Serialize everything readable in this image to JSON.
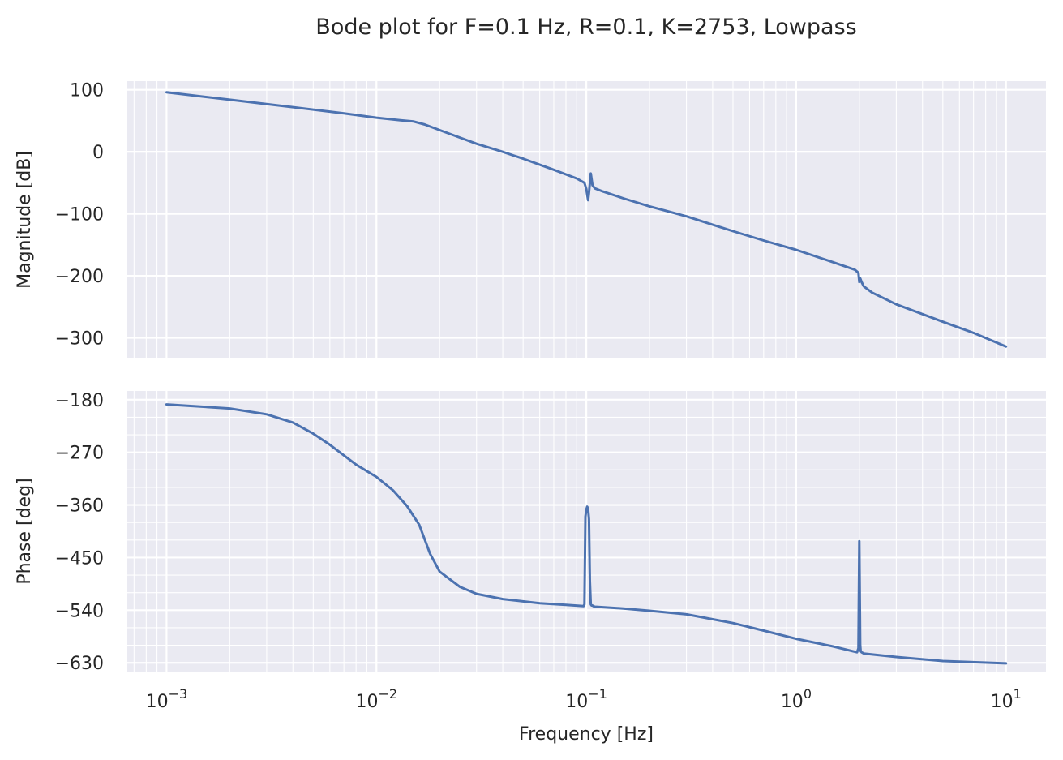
{
  "chart_data": {
    "title": "Bode plot for F=0.1 Hz, R=0.1, K=2753, Lowpass",
    "xlabel": "Frequency [Hz]",
    "xscale": "log",
    "xlim": [
      0.00065,
      15.5
    ],
    "xticks": [
      {
        "value": 0.001,
        "base": "10",
        "exp": "−3"
      },
      {
        "value": 0.01,
        "base": "10",
        "exp": "−2"
      },
      {
        "value": 0.1,
        "base": "10",
        "exp": "−1"
      },
      {
        "value": 1,
        "base": "10",
        "exp": "0"
      },
      {
        "value": 10,
        "base": "10",
        "exp": "1"
      }
    ],
    "grid": true,
    "colors": {
      "series": "#4c72b0",
      "panel": "#eaeaf2",
      "grid": "#ffffff",
      "text": "#262626"
    },
    "panels": [
      {
        "type": "line",
        "ylabel": "Magnitude [dB]",
        "ylim": [
          -332,
          114
        ],
        "yticks": [
          {
            "value": 100,
            "label": "100"
          },
          {
            "value": 0,
            "label": "0"
          },
          {
            "value": -100,
            "label": "−100"
          },
          {
            "value": -200,
            "label": "−200"
          },
          {
            "value": -300,
            "label": "−300"
          }
        ],
        "series": [
          {
            "x": [
              0.001,
              0.002,
              0.004,
              0.007,
              0.01,
              0.013,
              0.015,
              0.017,
              0.02,
              0.025,
              0.03,
              0.04,
              0.05,
              0.07,
              0.09,
              0.098,
              0.1,
              0.102,
              0.103,
              0.105,
              0.107,
              0.11,
              0.12,
              0.15,
              0.2,
              0.3,
              0.5,
              0.7,
              1.0,
              1.5,
              1.9,
              1.98,
              2.0,
              2.02,
              2.05,
              2.1,
              2.3,
              3.0,
              5.0,
              7.0,
              10.0
            ],
            "y": [
              96,
              84,
              72,
              62,
              55,
              51,
              49,
              44,
              35,
              23,
              13,
              0,
              -11,
              -29,
              -43,
              -50,
              -60,
              -78,
              -66,
              -35,
              -54,
              -59,
              -64,
              -75,
              -88,
              -104,
              -128,
              -143,
              -158,
              -178,
              -190,
              -195,
              -210,
              -204,
              -210,
              -217,
              -227,
              -246,
              -274,
              -292,
              -314
            ]
          }
        ]
      },
      {
        "type": "line",
        "ylabel": "Phase [deg]",
        "ylim": [
          -645,
          -165
        ],
        "yticks": [
          {
            "value": -180,
            "label": "−180"
          },
          {
            "value": -270,
            "label": "−270"
          },
          {
            "value": -360,
            "label": "−360"
          },
          {
            "value": -450,
            "label": "−450"
          },
          {
            "value": -540,
            "label": "−540"
          },
          {
            "value": -630,
            "label": "−630"
          }
        ],
        "series": [
          {
            "x": [
              0.001,
              0.002,
              0.003,
              0.004,
              0.005,
              0.006,
              0.008,
              0.01,
              0.012,
              0.014,
              0.016,
              0.018,
              0.02,
              0.025,
              0.03,
              0.04,
              0.06,
              0.08,
              0.097,
              0.098,
              0.099,
              0.1,
              0.101,
              0.102,
              0.103,
              0.104,
              0.105,
              0.106,
              0.107,
              0.108,
              0.11,
              0.15,
              0.2,
              0.3,
              0.5,
              0.7,
              1.0,
              1.5,
              1.95,
              1.98,
              2.0,
              2.02,
              2.03,
              2.05,
              2.1,
              3.0,
              5.0,
              10.0
            ],
            "y": [
              -188,
              -195,
              -205,
              -219,
              -238,
              -257,
              -291,
              -312,
              -335,
              -362,
              -394,
              -443,
              -474,
              -500,
              -512,
              -521,
              -528,
              -531,
              -533,
              -530,
              -380,
              -368,
              -363,
              -367,
              -384,
              -490,
              -530,
              -532,
              -532,
              -533,
              -534,
              -537,
              -541,
              -547,
              -562,
              -575,
              -589,
              -602,
              -612,
              -605,
              -422,
              -600,
              -610,
              -612,
              -614,
              -620,
              -627,
              -631
            ]
          }
        ]
      }
    ]
  }
}
